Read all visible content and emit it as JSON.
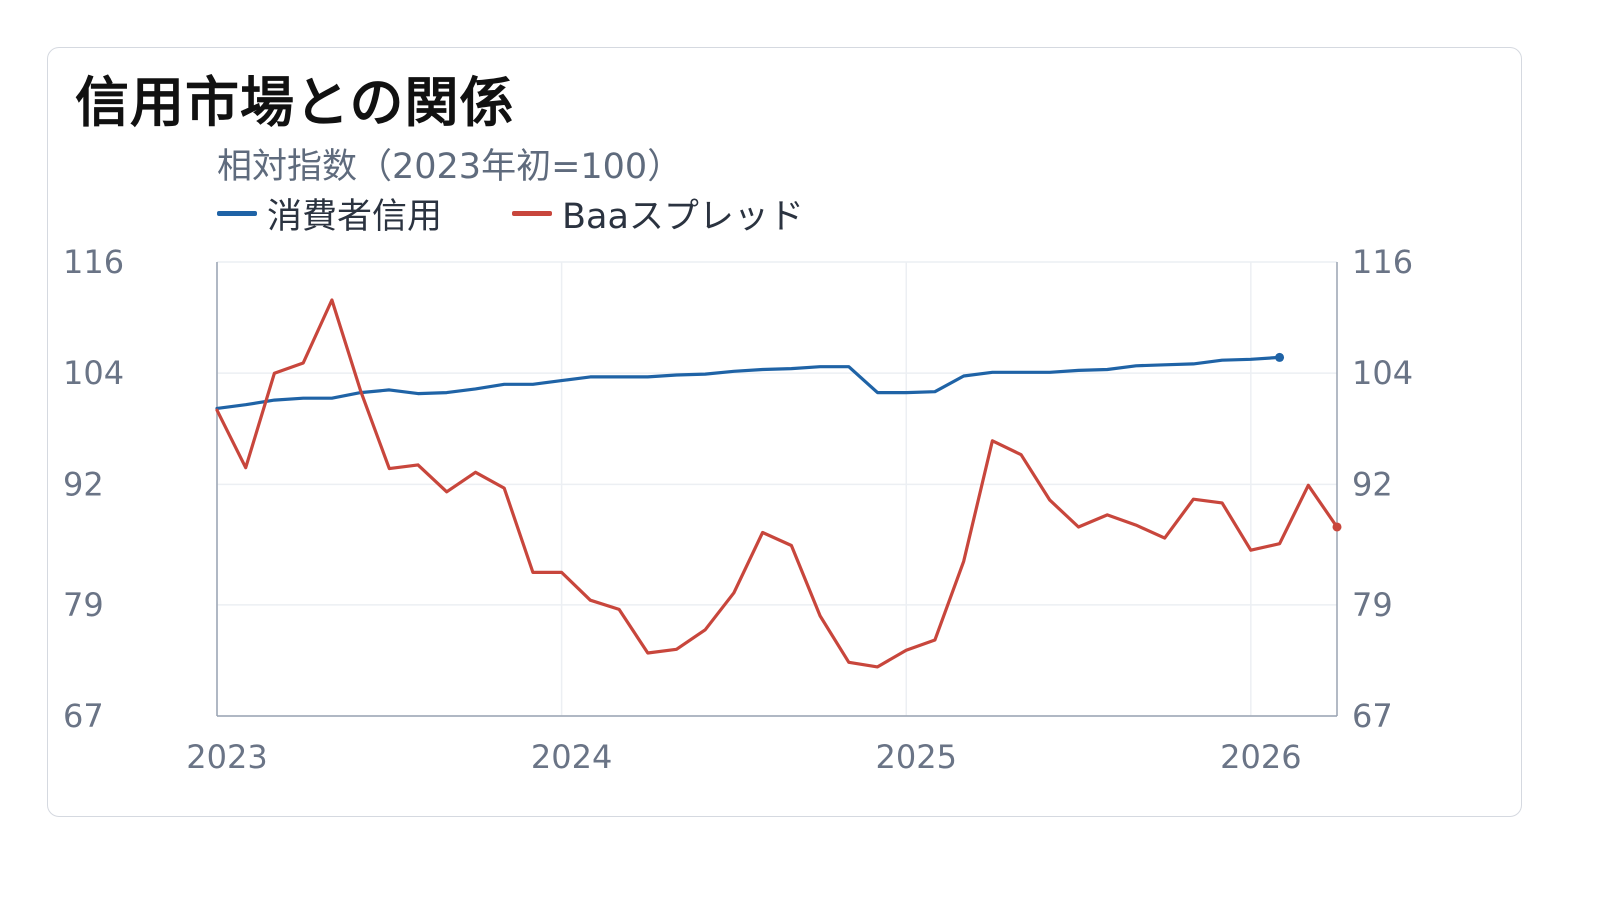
{
  "chart_data": {
    "type": "line",
    "title": "信用市場との関係",
    "subtitle": "相対指数（2023年初=100）",
    "x_ticks": [
      "2023",
      "2024",
      "2025",
      "2026"
    ],
    "y_ticks": [
      "67",
      "79",
      "92",
      "104",
      "116"
    ],
    "ylim": [
      67,
      116
    ],
    "xlim": [
      "2023-01",
      "2026-04"
    ],
    "grid": true,
    "legend_position": "top-left",
    "series": [
      {
        "name": "消費者信用",
        "color": "#1f63a6",
        "x": [
          "2023-01",
          "2023-02",
          "2023-03",
          "2023-04",
          "2023-05",
          "2023-06",
          "2023-07",
          "2023-08",
          "2023-09",
          "2023-10",
          "2023-11",
          "2023-12",
          "2024-01",
          "2024-02",
          "2024-03",
          "2024-04",
          "2024-05",
          "2024-06",
          "2024-07",
          "2024-08",
          "2024-09",
          "2024-10",
          "2024-11",
          "2024-12",
          "2025-01",
          "2025-02",
          "2025-03",
          "2025-04",
          "2025-05",
          "2025-06",
          "2025-07",
          "2025-08",
          "2025-09",
          "2025-10",
          "2025-11",
          "2025-12",
          "2026-01",
          "2026-02"
        ],
        "values": [
          100.2,
          100.6,
          101.1,
          101.3,
          101.3,
          101.9,
          102.2,
          101.8,
          101.9,
          102.3,
          102.8,
          102.8,
          103.2,
          103.6,
          103.6,
          103.6,
          103.8,
          103.9,
          104.2,
          104.4,
          104.5,
          104.7,
          104.7,
          101.9,
          101.9,
          102.0,
          103.7,
          104.1,
          104.1,
          104.1,
          104.3,
          104.4,
          104.8,
          104.9,
          105.0,
          105.4,
          105.5,
          105.7
        ]
      },
      {
        "name": "Baaスプレッド",
        "color": "#c8463c",
        "x": [
          "2023-01",
          "2023-02",
          "2023-03",
          "2023-04",
          "2023-05",
          "2023-06",
          "2023-07",
          "2023-08",
          "2023-09",
          "2023-10",
          "2023-11",
          "2023-12",
          "2024-01",
          "2024-02",
          "2024-03",
          "2024-04",
          "2024-05",
          "2024-06",
          "2024-07",
          "2024-08",
          "2024-09",
          "2024-10",
          "2024-11",
          "2024-12",
          "2025-01",
          "2025-02",
          "2025-03",
          "2025-04",
          "2025-05",
          "2025-06",
          "2025-07",
          "2025-08",
          "2025-09",
          "2025-10",
          "2025-11",
          "2025-12",
          "2026-01",
          "2026-02",
          "2026-03",
          "2026-04"
        ],
        "values": [
          100.0,
          93.8,
          104.0,
          105.1,
          111.9,
          102.1,
          93.7,
          94.1,
          91.2,
          93.3,
          91.6,
          82.5,
          82.5,
          79.5,
          78.5,
          73.8,
          74.2,
          76.3,
          80.3,
          86.8,
          85.4,
          77.8,
          72.8,
          72.3,
          74.1,
          75.2,
          83.7,
          96.7,
          95.2,
          90.3,
          87.4,
          88.7,
          87.6,
          86.2,
          90.4,
          90.0,
          84.9,
          85.6,
          91.9,
          87.4
        ]
      }
    ]
  }
}
